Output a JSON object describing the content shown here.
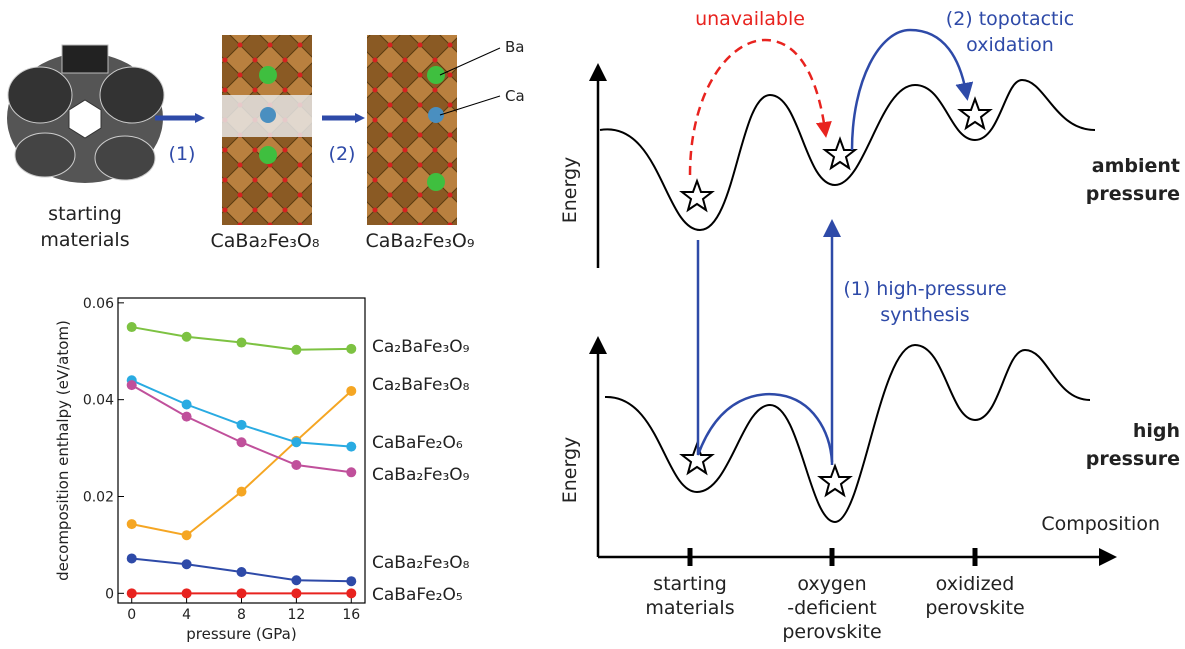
{
  "schematic": {
    "starting": [
      "starting",
      "materials"
    ],
    "step1": "(1)",
    "step2": "(2)",
    "product1": "CaBa₂Fe₃O₈",
    "product2": "CaBa₂Fe₃O₉",
    "ba": "Ba",
    "ca": "Ca"
  },
  "energy_diagram": {
    "unavailable": "unavailable",
    "oxidation": [
      "(2) topotactic",
      "oxidation"
    ],
    "synthesis": [
      "(1) high-pressure",
      "synthesis"
    ],
    "energy_top": "Energy",
    "energy_bottom": "Energy",
    "ambient": [
      "ambient",
      "pressure"
    ],
    "high": [
      "high",
      "pressure"
    ],
    "composition": "Composition",
    "x_labels": [
      [
        "starting",
        "materials"
      ],
      [
        "oxygen",
        "-deficient",
        "perovskite"
      ],
      [
        "oxidized",
        "perovskite"
      ]
    ]
  },
  "chart_data": {
    "type": "line",
    "xlabel": "pressure (GPa)",
    "ylabel": "decomposition enthalpy (eV/atom)",
    "x": [
      0,
      4,
      8,
      12,
      16
    ],
    "xlim": [
      -1,
      17
    ],
    "xticks": [
      0,
      4,
      8,
      12,
      16
    ],
    "ylim": [
      -0.002,
      0.061
    ],
    "yticks": [
      0,
      0.02,
      0.04,
      0.06
    ],
    "series": [
      {
        "name": "Ca₂BaFe₃O₉",
        "color": "#7dc242",
        "values": [
          0.055,
          0.053,
          0.0518,
          0.0503,
          0.0505
        ]
      },
      {
        "name": "Ca₂BaFe₃O₈",
        "color": "#f5a623",
        "values": [
          0.0143,
          0.012,
          0.021,
          0.0315,
          0.0418
        ]
      },
      {
        "name": "CaBaFe₂O₆",
        "color": "#29abe2",
        "values": [
          0.044,
          0.039,
          0.0348,
          0.0312,
          0.0303
        ]
      },
      {
        "name": "CaBa₂Fe₃O₉",
        "color": "#c0509b",
        "values": [
          0.043,
          0.0365,
          0.0312,
          0.0265,
          0.025
        ]
      },
      {
        "name": "CaBa₂Fe₃O₈",
        "color": "#2e4aa8",
        "values": [
          0.0072,
          0.006,
          0.0044,
          0.0027,
          0.0025
        ]
      },
      {
        "name": "CaBaFe₂O₅",
        "color": "#e8231f",
        "values": [
          0,
          0,
          0,
          0,
          0
        ]
      }
    ]
  }
}
